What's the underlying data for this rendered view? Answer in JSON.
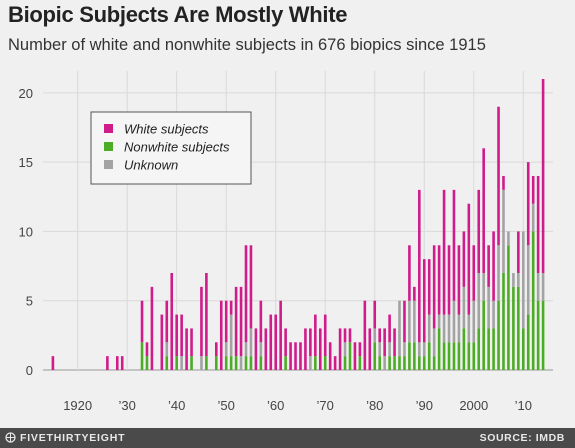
{
  "header": {
    "title": "Biopic Subjects Are Mostly White",
    "subtitle": "Number of white and nonwhite subjects in 676 biopics since 1915"
  },
  "footer": {
    "brand": "FIVETHIRTYEIGHT",
    "source": "SOURCE: IMDB"
  },
  "colors": {
    "white": "#d01c8b",
    "nonwhite": "#4dac26",
    "unknown": "#a3a3a3",
    "grid": "#d9d9d9",
    "background": "#f0f0f0"
  },
  "chart_data": {
    "type": "bar",
    "stacked": true,
    "title": "Biopic Subjects Are Mostly White",
    "subtitle": "Number of white and nonwhite subjects in 676 biopics since 1915",
    "xlim": [
      1913,
      2016
    ],
    "ylim": [
      0,
      21
    ],
    "yticks": [
      0,
      5,
      10,
      15,
      20
    ],
    "xticks": [
      {
        "value": 1920,
        "label": "1920"
      },
      {
        "value": 1930,
        "label": "’30"
      },
      {
        "value": 1940,
        "label": "’40"
      },
      {
        "value": 1950,
        "label": "’50"
      },
      {
        "value": 1960,
        "label": "’60"
      },
      {
        "value": 1970,
        "label": "’70"
      },
      {
        "value": 1980,
        "label": "’80"
      },
      {
        "value": 1990,
        "label": "’90"
      },
      {
        "value": 2000,
        "label": "2000"
      },
      {
        "value": 2010,
        "label": "’10"
      }
    ],
    "grid": true,
    "legend_position": "top-left",
    "legend": [
      "White subjects",
      "Nonwhite subjects",
      "Unknown"
    ],
    "series": [
      {
        "name": "Nonwhite subjects",
        "key": "nonwhite",
        "x": [
          1915,
          1926,
          1928,
          1929,
          1933,
          1934,
          1935,
          1936,
          1937,
          1938,
          1939,
          1940,
          1941,
          1942,
          1943,
          1944,
          1945,
          1946,
          1947,
          1948,
          1949,
          1950,
          1951,
          1952,
          1953,
          1954,
          1955,
          1956,
          1957,
          1958,
          1959,
          1960,
          1961,
          1962,
          1963,
          1964,
          1965,
          1966,
          1967,
          1968,
          1969,
          1970,
          1971,
          1972,
          1973,
          1974,
          1975,
          1976,
          1977,
          1978,
          1979,
          1980,
          1981,
          1982,
          1983,
          1984,
          1985,
          1986,
          1987,
          1988,
          1989,
          1990,
          1991,
          1992,
          1993,
          1994,
          1995,
          1996,
          1997,
          1998,
          1999,
          2000,
          2001,
          2002,
          2003,
          2004,
          2005,
          2006,
          2007,
          2008,
          2009,
          2010,
          2011,
          2012,
          2013,
          2014
        ],
        "values": [
          0,
          0,
          0,
          0,
          2,
          1,
          0,
          0,
          0,
          1,
          0,
          1,
          0,
          0,
          1,
          0,
          0,
          1,
          0,
          1,
          0,
          1,
          1,
          1,
          0,
          1,
          1,
          0,
          1,
          0,
          0,
          0,
          0,
          1,
          0,
          0,
          0,
          0,
          0,
          1,
          0,
          1,
          0,
          0,
          0,
          1,
          2,
          0,
          1,
          0,
          0,
          2,
          1,
          0,
          1,
          1,
          1,
          1,
          2,
          2,
          1,
          1,
          2,
          1,
          3,
          2,
          2,
          2,
          2,
          3,
          2,
          2,
          3,
          5,
          3,
          3,
          5,
          7,
          9,
          6,
          6,
          3,
          4,
          10,
          5,
          5
        ]
      },
      {
        "name": "Unknown",
        "key": "unknown",
        "x": [
          1915,
          1926,
          1928,
          1929,
          1933,
          1934,
          1935,
          1936,
          1937,
          1938,
          1939,
          1940,
          1941,
          1942,
          1943,
          1944,
          1945,
          1946,
          1947,
          1948,
          1949,
          1950,
          1951,
          1952,
          1953,
          1954,
          1955,
          1956,
          1957,
          1958,
          1959,
          1960,
          1961,
          1962,
          1963,
          1964,
          1965,
          1966,
          1967,
          1968,
          1969,
          1970,
          1971,
          1972,
          1973,
          1974,
          1975,
          1976,
          1977,
          1978,
          1979,
          1980,
          1981,
          1982,
          1983,
          1984,
          1985,
          1986,
          1987,
          1988,
          1989,
          1990,
          1991,
          1992,
          1993,
          1994,
          1995,
          1996,
          1997,
          1998,
          1999,
          2000,
          2001,
          2002,
          2003,
          2004,
          2005,
          2006,
          2007,
          2008,
          2009,
          2010,
          2011,
          2012,
          2013,
          2014
        ],
        "values": [
          0,
          0,
          0,
          0,
          0,
          0,
          0,
          0,
          0,
          1,
          0,
          0,
          1,
          0,
          0,
          0,
          1,
          0,
          0,
          0,
          0,
          1,
          3,
          0,
          1,
          1,
          2,
          0,
          1,
          0,
          0,
          0,
          0,
          0,
          0,
          0,
          0,
          0,
          1,
          0,
          0,
          0,
          0,
          0,
          0,
          1,
          0,
          0,
          0,
          0,
          0,
          1,
          1,
          1,
          1,
          0,
          4,
          1,
          3,
          3,
          1,
          1,
          2,
          2,
          1,
          2,
          2,
          3,
          2,
          3,
          2,
          3,
          4,
          2,
          3,
          2,
          4,
          6,
          1,
          1,
          1,
          7,
          5,
          2,
          2,
          2
        ]
      },
      {
        "name": "White subjects",
        "key": "white",
        "x": [
          1915,
          1926,
          1928,
          1929,
          1933,
          1934,
          1935,
          1936,
          1937,
          1938,
          1939,
          1940,
          1941,
          1942,
          1943,
          1944,
          1945,
          1946,
          1947,
          1948,
          1949,
          1950,
          1951,
          1952,
          1953,
          1954,
          1955,
          1956,
          1957,
          1958,
          1959,
          1960,
          1961,
          1962,
          1963,
          1964,
          1965,
          1966,
          1967,
          1968,
          1969,
          1970,
          1971,
          1972,
          1973,
          1974,
          1975,
          1976,
          1977,
          1978,
          1979,
          1980,
          1981,
          1982,
          1983,
          1984,
          1985,
          1986,
          1987,
          1988,
          1989,
          1990,
          1991,
          1992,
          1993,
          1994,
          1995,
          1996,
          1997,
          1998,
          1999,
          2000,
          2001,
          2002,
          2003,
          2004,
          2005,
          2006,
          2007,
          2008,
          2009,
          2010,
          2011,
          2012,
          2013,
          2014
        ],
        "values": [
          1,
          1,
          1,
          1,
          3,
          1,
          6,
          0,
          4,
          3,
          7,
          3,
          3,
          3,
          2,
          0,
          5,
          6,
          0,
          1,
          5,
          3,
          1,
          5,
          5,
          7,
          6,
          3,
          3,
          3,
          4,
          4,
          5,
          2,
          2,
          2,
          2,
          3,
          2,
          3,
          3,
          3,
          2,
          1,
          3,
          1,
          1,
          2,
          1,
          5,
          3,
          2,
          1,
          2,
          2,
          2,
          0,
          3,
          4,
          1,
          11,
          6,
          4,
          6,
          5,
          9,
          5,
          8,
          5,
          4,
          8,
          4,
          6,
          9,
          3,
          5,
          10,
          1,
          0,
          0,
          3,
          0,
          6,
          2,
          7,
          14
        ]
      }
    ]
  }
}
